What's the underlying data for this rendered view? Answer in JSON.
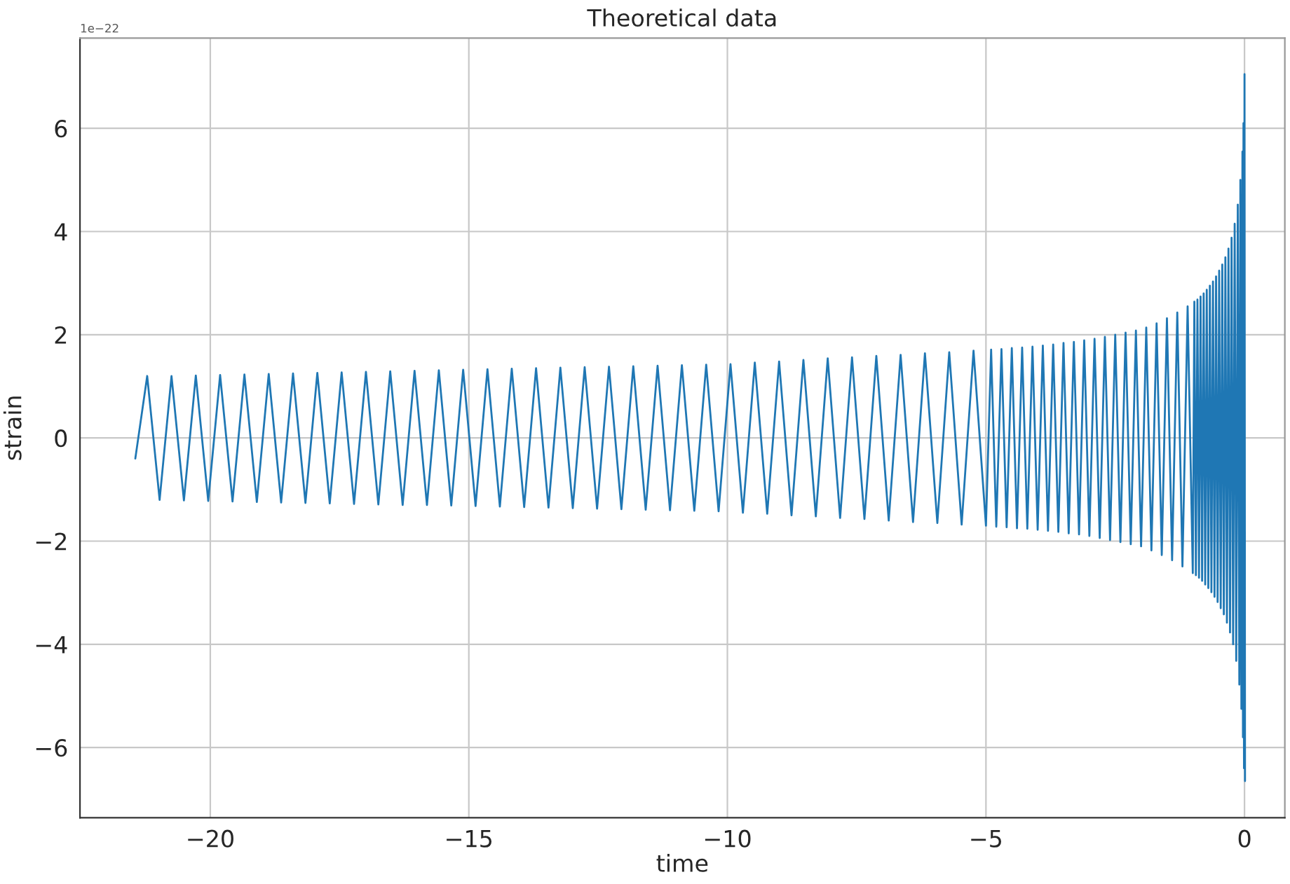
{
  "chart_data": {
    "type": "line",
    "title": "Theoretical data",
    "xlabel": "time",
    "ylabel": "strain",
    "annotations": [
      "1e−22"
    ],
    "xlim": [
      -22.52,
      0.78
    ],
    "ylim": [
      -7.36,
      7.75
    ],
    "xticks": [
      {
        "value": -20,
        "label": "−20"
      },
      {
        "value": -15,
        "label": "−15"
      },
      {
        "value": -10,
        "label": "−10"
      },
      {
        "value": -5,
        "label": "−5"
      },
      0
    ],
    "yticks": [
      {
        "value": -6,
        "label": "−6"
      },
      {
        "value": -4,
        "label": "−4"
      },
      {
        "value": -2,
        "label": "−2"
      },
      0,
      2,
      4,
      6
    ],
    "grid": true,
    "series": [
      {
        "color": "#1f77b4",
        "x": [
          -21.45,
          -21.22,
          -20.98,
          -20.75,
          -20.51,
          -20.28,
          -20.04,
          -19.81,
          -19.57,
          -19.34,
          -19.1,
          -18.87,
          -18.63,
          -18.4,
          -18.16,
          -17.93,
          -17.69,
          -17.46,
          -17.22,
          -16.99,
          -16.75,
          -16.52,
          -16.28,
          -16.05,
          -15.81,
          -15.58,
          -15.34,
          -15.11,
          -14.87,
          -14.64,
          -14.4,
          -14.17,
          -13.93,
          -13.7,
          -13.46,
          -13.23,
          -12.99,
          -12.76,
          -12.52,
          -12.29,
          -12.05,
          -11.82,
          -11.58,
          -11.35,
          -11.11,
          -10.88,
          -10.64,
          -10.41,
          -10.17,
          -9.94,
          -9.7,
          -9.47,
          -9.23,
          -9.0,
          -8.76,
          -8.53,
          -8.29,
          -8.06,
          -7.82,
          -7.59,
          -7.35,
          -7.12,
          -6.88,
          -6.65,
          -6.41,
          -6.18,
          -5.94,
          -5.71,
          -5.47,
          -5.24,
          -5.0,
          -4.9,
          -4.8,
          -4.7,
          -4.6,
          -4.5,
          -4.4,
          -4.3,
          -4.2,
          -4.1,
          -4.0,
          -3.9,
          -3.8,
          -3.7,
          -3.6,
          -3.5,
          -3.4,
          -3.3,
          -3.2,
          -3.1,
          -3.0,
          -2.9,
          -2.8,
          -2.7,
          -2.6,
          -2.5,
          -2.4,
          -2.3,
          -2.2,
          -2.1,
          -2.0,
          -1.9,
          -1.8,
          -1.7,
          -1.6,
          -1.5,
          -1.4,
          -1.3,
          -1.2,
          -1.1,
          -1.0,
          -0.97,
          -0.94,
          -0.91,
          -0.88,
          -0.85,
          -0.82,
          -0.79,
          -0.76,
          -0.73,
          -0.7,
          -0.67,
          -0.64,
          -0.61,
          -0.58,
          -0.55,
          -0.52,
          -0.49,
          -0.46,
          -0.43,
          -0.4,
          -0.37,
          -0.34,
          -0.31,
          -0.28,
          -0.25,
          -0.22,
          -0.19,
          -0.16,
          -0.13,
          -0.1,
          -0.08,
          -0.06,
          -0.04,
          -0.03,
          -0.02,
          -0.01,
          0.0,
          0.01
        ],
        "values": [
          -0.4,
          1.2,
          -1.2,
          1.2,
          -1.21,
          1.21,
          -1.22,
          1.22,
          -1.23,
          1.23,
          -1.24,
          1.24,
          -1.25,
          1.25,
          -1.26,
          1.26,
          -1.27,
          1.27,
          -1.28,
          1.28,
          -1.29,
          1.29,
          -1.3,
          1.3,
          -1.3,
          1.31,
          -1.31,
          1.32,
          -1.32,
          1.33,
          -1.33,
          1.34,
          -1.34,
          1.35,
          -1.35,
          1.36,
          -1.36,
          1.37,
          -1.37,
          1.38,
          -1.38,
          1.39,
          -1.39,
          1.4,
          -1.4,
          1.41,
          -1.41,
          1.42,
          -1.42,
          1.43,
          -1.45,
          1.46,
          -1.47,
          1.48,
          -1.5,
          1.51,
          -1.52,
          1.54,
          -1.55,
          1.56,
          -1.57,
          1.59,
          -1.6,
          1.61,
          -1.63,
          1.64,
          -1.65,
          1.66,
          -1.68,
          1.69,
          -1.7,
          1.71,
          -1.72,
          1.72,
          -1.73,
          1.74,
          -1.75,
          1.75,
          -1.76,
          1.77,
          -1.78,
          1.79,
          -1.8,
          1.81,
          -1.82,
          1.84,
          -1.85,
          1.86,
          -1.87,
          1.89,
          -1.9,
          1.92,
          -1.94,
          1.96,
          -1.98,
          2.0,
          -2.02,
          2.04,
          -2.06,
          2.08,
          -2.1,
          2.14,
          -2.18,
          2.22,
          -2.27,
          2.32,
          -2.37,
          2.43,
          -2.49,
          2.55,
          -2.62,
          2.64,
          -2.66,
          2.68,
          -2.71,
          2.74,
          -2.77,
          2.8,
          -2.84,
          2.87,
          -2.91,
          2.95,
          -2.99,
          3.03,
          -3.08,
          3.13,
          -3.18,
          3.24,
          -3.3,
          3.36,
          -3.42,
          3.5,
          -3.58,
          3.67,
          -3.77,
          3.88,
          -4.0,
          4.15,
          -4.32,
          4.52,
          -4.78,
          5.0,
          -5.25,
          5.55,
          -5.8,
          6.1,
          -6.4,
          7.05,
          -6.65
        ]
      }
    ]
  }
}
